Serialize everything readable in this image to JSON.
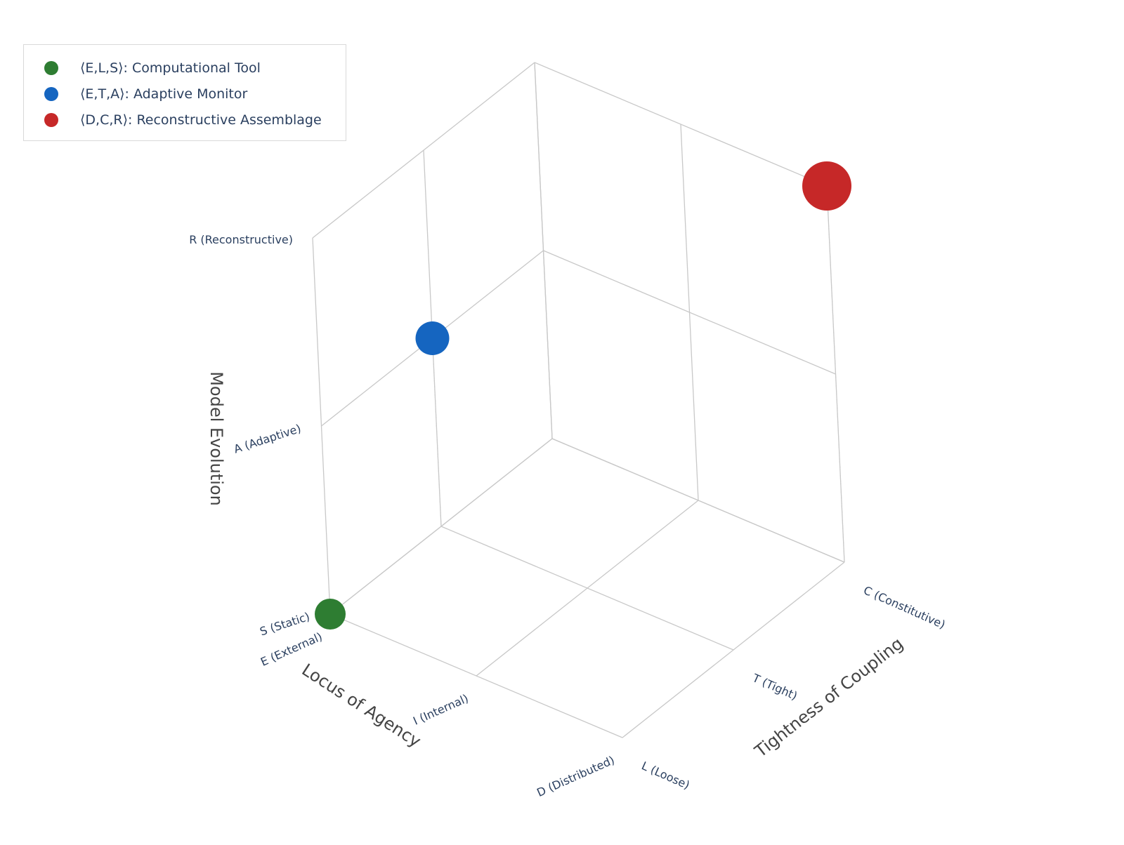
{
  "chart_data": {
    "type": "scatter3d",
    "axes": {
      "x": {
        "title": "Locus of Agency",
        "categories": [
          "E (External)",
          "I (Internal)",
          "D (Distributed)"
        ]
      },
      "y": {
        "title": "Tightness of Coupling",
        "categories": [
          "L (Loose)",
          "T (Tight)",
          "C (Constitutive)"
        ]
      },
      "z": {
        "title": "Model Evolution",
        "categories": [
          "S (Static)",
          "A (Adaptive)",
          "R (Reconstructive)"
        ]
      }
    },
    "series": [
      {
        "name": "⟨E,L,S⟩: Computational Tool",
        "x": "E (External)",
        "y": "L (Loose)",
        "z": "S (Static)",
        "color": "#2e7d32"
      },
      {
        "name": "⟨E,T,A⟩: Adaptive Monitor",
        "x": "E (External)",
        "y": "T (Tight)",
        "z": "A (Adaptive)",
        "color": "#1565c0"
      },
      {
        "name": "⟨D,C,R⟩: Reconstructive Assemblage",
        "x": "D (Distributed)",
        "y": "C (Constitutive)",
        "z": "R (Reconstructive)",
        "color": "#c62828"
      }
    ],
    "grid": true,
    "legend": "top-left"
  },
  "colors": {
    "grid": "#c8c8c8",
    "tick_text": "#2a3f5f",
    "axis_title": "#444444"
  }
}
